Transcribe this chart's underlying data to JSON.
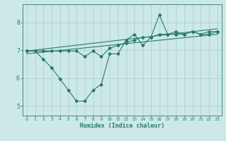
{
  "title": "",
  "xlabel": "Humidex (Indice chaleur)",
  "ylabel": "",
  "bg_color": "#cce8e8",
  "grid_color": "#aacccc",
  "line_color": "#2a7a6a",
  "xlim": [
    -0.5,
    23.5
  ],
  "ylim": [
    4.65,
    8.65
  ],
  "xticks": [
    0,
    1,
    2,
    3,
    4,
    5,
    6,
    7,
    8,
    9,
    10,
    11,
    12,
    13,
    14,
    15,
    16,
    17,
    18,
    19,
    20,
    21,
    22,
    23
  ],
  "yticks": [
    5,
    6,
    7,
    8
  ],
  "series_main_x": [
    0,
    1,
    2,
    3,
    4,
    5,
    6,
    7,
    8,
    9,
    10,
    11,
    12,
    13,
    14,
    15,
    16,
    17,
    18,
    19,
    20,
    21,
    22,
    23
  ],
  "series_main_y": [
    6.97,
    6.97,
    6.67,
    6.37,
    5.97,
    5.57,
    5.17,
    5.17,
    5.57,
    5.77,
    6.87,
    6.87,
    7.37,
    7.57,
    7.17,
    7.47,
    8.27,
    7.57,
    7.57,
    7.57,
    7.67,
    7.57,
    7.57,
    7.67
  ],
  "series_smooth_x": [
    0,
    1,
    2,
    3,
    4,
    5,
    6,
    7,
    8,
    9,
    10,
    11,
    12,
    13,
    14,
    15,
    16,
    17,
    18,
    19,
    20,
    21,
    22,
    23
  ],
  "series_smooth_y": [
    6.97,
    6.97,
    6.97,
    6.97,
    6.97,
    6.97,
    6.97,
    6.77,
    6.97,
    6.77,
    7.07,
    7.17,
    7.27,
    7.37,
    7.47,
    7.47,
    7.57,
    7.57,
    7.67,
    7.57,
    7.67,
    7.57,
    7.67,
    7.67
  ],
  "trend1_x": [
    0,
    23
  ],
  "trend1_y": [
    6.87,
    7.57
  ],
  "trend2_x": [
    0,
    23
  ],
  "trend2_y": [
    6.97,
    7.77
  ]
}
